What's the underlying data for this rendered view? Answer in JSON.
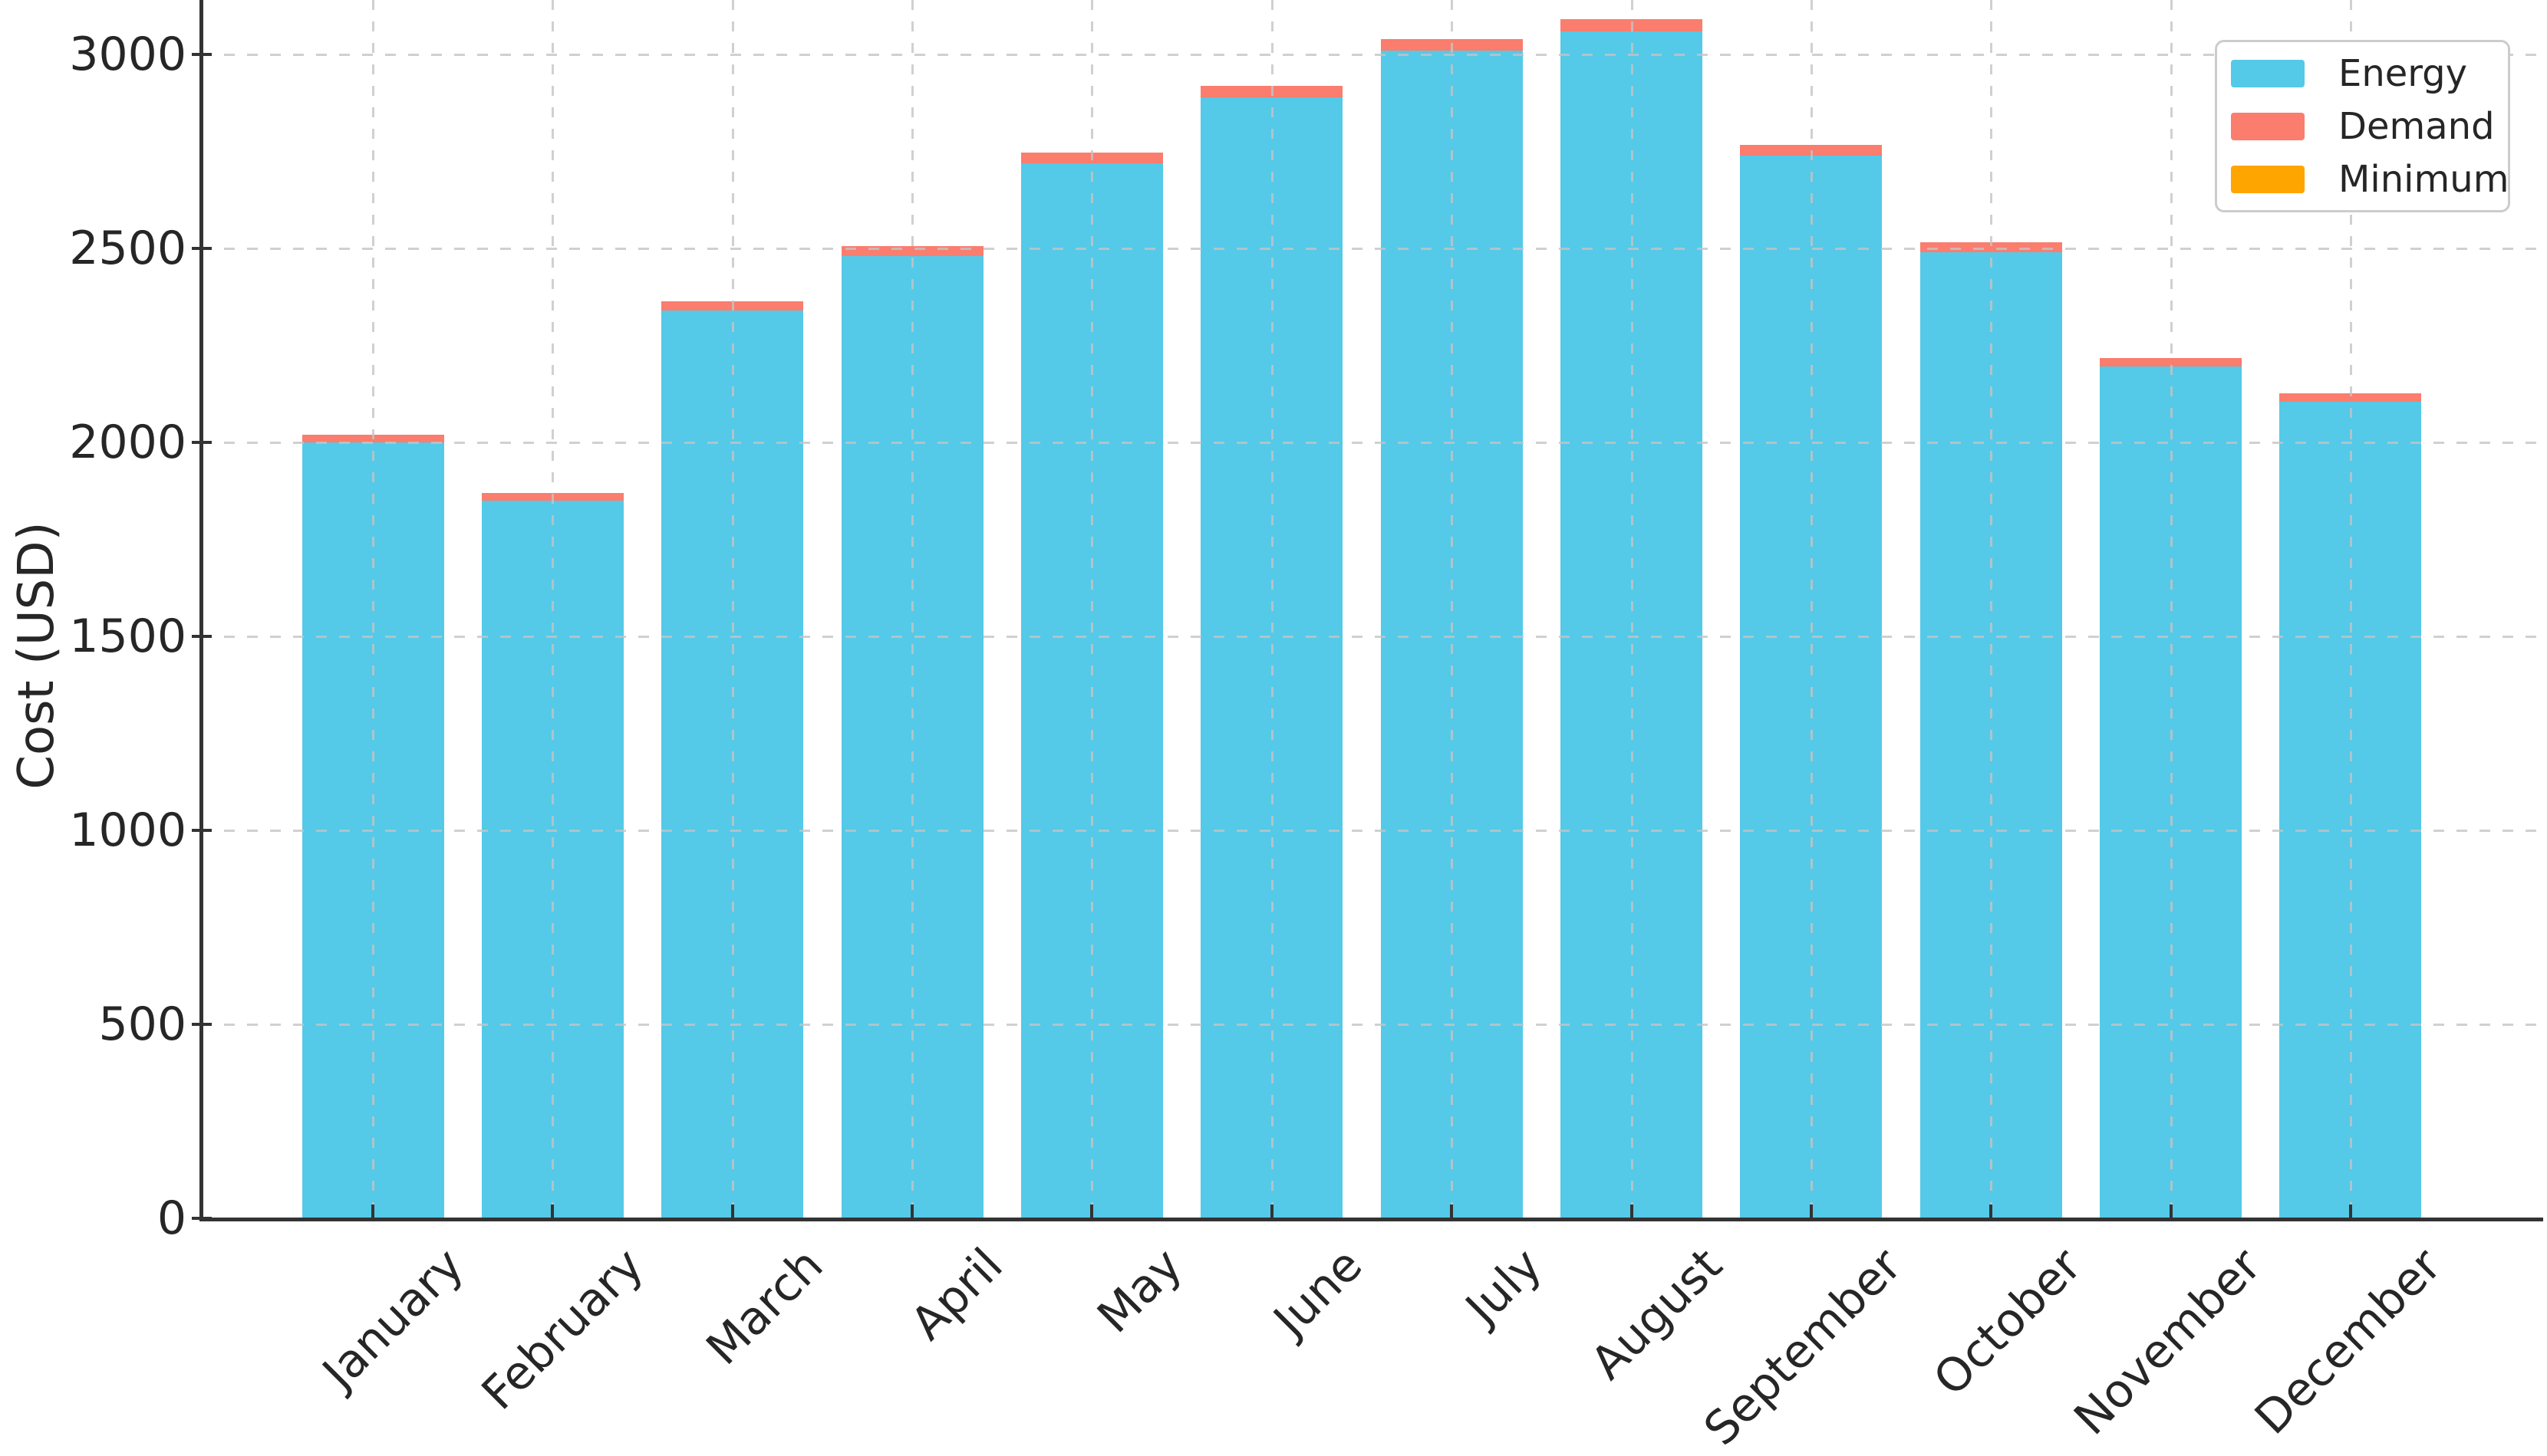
{
  "chart_data": {
    "type": "bar",
    "stacked": true,
    "title": "",
    "xlabel": "",
    "ylabel": "Cost (USD)",
    "categories": [
      "January",
      "February",
      "March",
      "April",
      "May",
      "June",
      "July",
      "August",
      "September",
      "October",
      "November",
      "December"
    ],
    "series": [
      {
        "name": "Energy",
        "color": "#55C9E8",
        "values": [
          2000,
          1850,
          2340,
          2480,
          2720,
          2890,
          3010,
          3060,
          2740,
          2490,
          2195,
          2105
        ]
      },
      {
        "name": "Demand",
        "color": "#FA7D6E",
        "values": [
          20,
          19,
          23,
          25,
          27,
          29,
          30,
          31,
          27,
          25,
          22,
          21
        ]
      },
      {
        "name": "Minimum",
        "color": "#FFA500",
        "values": [
          0,
          0,
          0,
          0,
          0,
          0,
          0,
          0,
          0,
          0,
          0,
          0
        ]
      }
    ],
    "totals": [
      2020,
      1869,
      2363,
      2505,
      2747,
      2919,
      3040,
      3091,
      2767,
      2515,
      2217,
      2126
    ],
    "yticks": [
      0,
      500,
      1000,
      1500,
      2000,
      2500,
      3000
    ],
    "ylim": [
      0,
      3140
    ],
    "grid": {
      "visible": true,
      "style": "dashed",
      "color": "#C6C6C6",
      "horizontal": true,
      "vertical": true
    },
    "legend": {
      "position": "upper-right",
      "entries": [
        "Energy",
        "Demand",
        "Minimum"
      ]
    },
    "axis_color": "#333333",
    "text_color": "#262626",
    "background": "#FFFFFF"
  }
}
